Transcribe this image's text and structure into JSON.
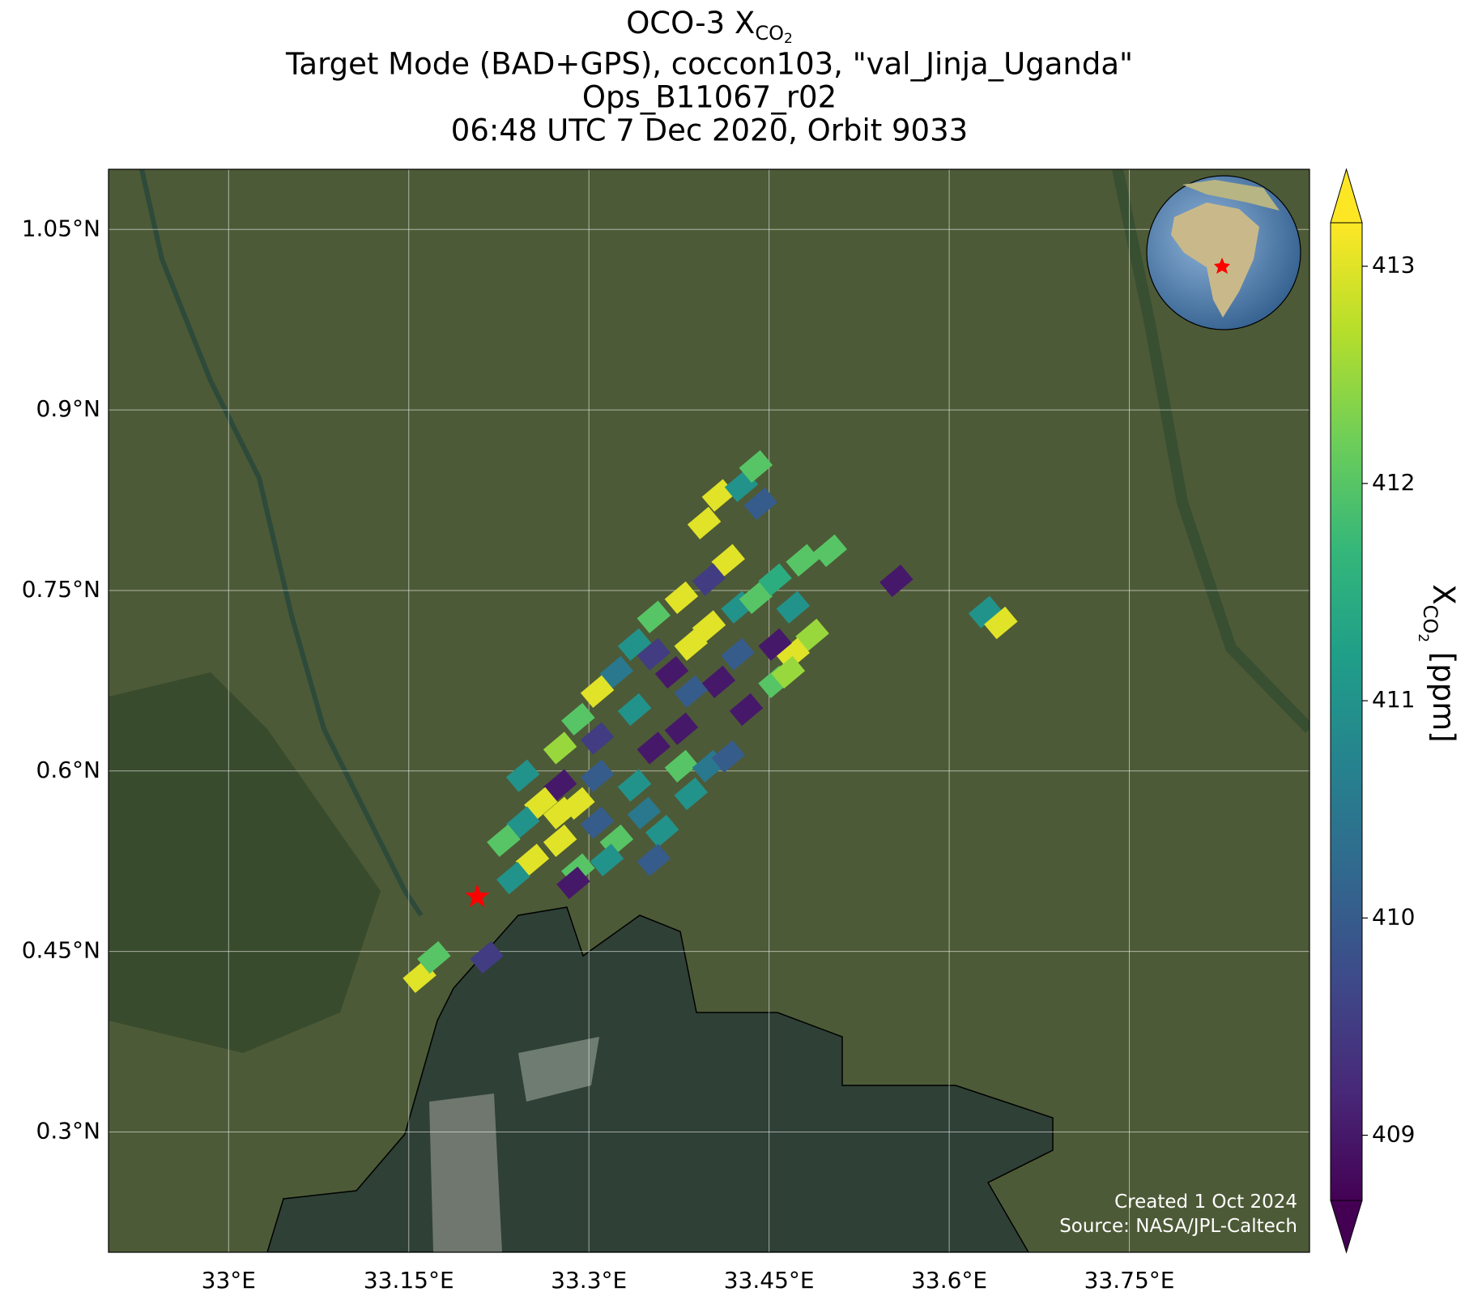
{
  "chart_data": {
    "type": "footprints",
    "title_main": "OCO-3 X",
    "title_sub": "CO",
    "title_subsub": "2",
    "subtitle_lines": [
      "Target Mode (BAD+GPS), coccon103, \"val_Jinja_Uganda\"",
      "Ops_B11067_r02",
      "06:48 UTC 7 Dec 2020, Orbit 9033"
    ],
    "xlim": [
      32.9,
      33.9
    ],
    "ylim": [
      0.2,
      1.1
    ],
    "xticks": [
      {
        "value": 33,
        "label": "33°E"
      },
      {
        "value": 33.15,
        "label": "33.15°E"
      },
      {
        "value": 33.3,
        "label": "33.3°E"
      },
      {
        "value": 33.45,
        "label": "33.45°E"
      },
      {
        "value": 33.6,
        "label": "33.6°E"
      },
      {
        "value": 33.75,
        "label": "33.75°E"
      }
    ],
    "yticks": [
      {
        "value": 0.3,
        "label": "0.3°N"
      },
      {
        "value": 0.45,
        "label": "0.45°N"
      },
      {
        "value": 0.6,
        "label": "0.6°N"
      },
      {
        "value": 0.75,
        "label": "0.75°N"
      },
      {
        "value": 0.9,
        "label": "0.9°N"
      },
      {
        "value": 1.05,
        "label": "1.05°N"
      }
    ],
    "grid": true,
    "colorbar": {
      "label_main": "X",
      "label_sub": "CO",
      "label_subsub": "2",
      "label_unit": " [ppm]",
      "clim": [
        408.7,
        413.2
      ],
      "ticks": [
        409,
        410,
        411,
        412,
        413
      ],
      "colormap": [
        "#440154",
        "#482878",
        "#3e4989",
        "#31688e",
        "#26828e",
        "#1f9e89",
        "#35b779",
        "#6ece58",
        "#b5de2b",
        "#fde725"
      ]
    },
    "target": {
      "lon": 33.207,
      "lat": 0.4955,
      "color": "#ff0000"
    },
    "lon": [
      33.396,
      33.408,
      33.427,
      33.439,
      33.443,
      33.416,
      33.4,
      33.377,
      33.354,
      33.338,
      33.323,
      33.354,
      33.369,
      33.385,
      33.4,
      33.424,
      33.439,
      33.455,
      33.478,
      33.501,
      33.47,
      33.486,
      33.47,
      33.455,
      33.424,
      33.408,
      33.385,
      33.431,
      33.455,
      33.466,
      33.338,
      33.307,
      33.291,
      33.276,
      33.307,
      33.354,
      33.377,
      33.245,
      33.276,
      33.307,
      33.338,
      33.377,
      33.4,
      33.416,
      33.385,
      33.26,
      33.276,
      33.291,
      33.245,
      33.229,
      33.276,
      33.307,
      33.323,
      33.346,
      33.361,
      33.354,
      33.253,
      33.291,
      33.315,
      33.237,
      33.556,
      33.63,
      33.643,
      33.159,
      33.171,
      33.215,
      33.287
    ],
    "lat": [
      0.806,
      0.829,
      0.837,
      0.853,
      0.822,
      0.775,
      0.759,
      0.744,
      0.728,
      0.705,
      0.682,
      0.697,
      0.682,
      0.705,
      0.72,
      0.736,
      0.744,
      0.759,
      0.775,
      0.783,
      0.736,
      0.713,
      0.697,
      0.705,
      0.697,
      0.674,
      0.666,
      0.651,
      0.674,
      0.682,
      0.651,
      0.666,
      0.643,
      0.619,
      0.627,
      0.619,
      0.635,
      0.596,
      0.588,
      0.596,
      0.588,
      0.604,
      0.604,
      0.612,
      0.581,
      0.573,
      0.565,
      0.573,
      0.557,
      0.542,
      0.542,
      0.557,
      0.542,
      0.565,
      0.55,
      0.526,
      0.526,
      0.518,
      0.526,
      0.511,
      0.758,
      0.732,
      0.723,
      0.429,
      0.445,
      0.445,
      0.507
    ],
    "values": [
      413,
      413,
      411,
      412,
      410,
      413,
      409.5,
      413,
      412,
      411,
      410.5,
      409.5,
      409,
      413,
      413,
      411,
      412,
      411.5,
      412,
      412,
      411,
      412.5,
      413,
      409,
      410,
      409,
      410,
      409,
      412,
      412.5,
      411,
      413,
      412,
      412.5,
      409.5,
      409,
      409,
      411,
      409,
      410,
      411,
      412,
      410.5,
      410,
      411,
      413,
      413,
      413,
      411,
      412,
      413,
      410,
      412,
      410.5,
      411,
      410,
      413,
      412,
      411,
      411,
      409,
      411,
      413,
      413,
      412,
      409.5,
      409
    ],
    "footer_lines": [
      "Created 1 Oct 2024",
      "Source: NASA/JPL-Caltech"
    ]
  }
}
